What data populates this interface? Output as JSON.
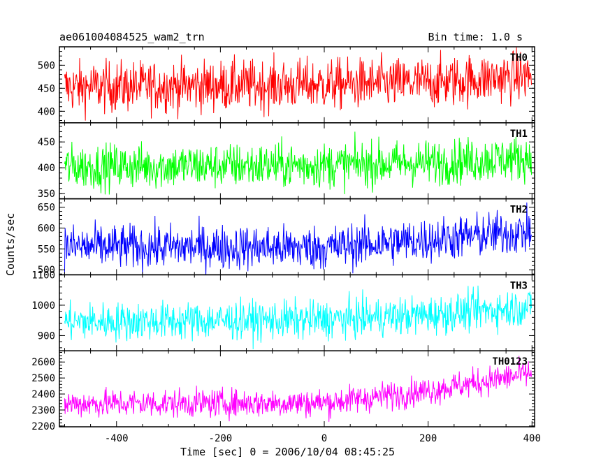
{
  "chart_data": {
    "type": "line",
    "title_left": "ae061004084525_wam2_trn",
    "title_right": "Bin time: 1.0 s",
    "xlabel": "Time [sec] 0 = 2006/10/04 08:45:25",
    "ylabel": "Counts/sec",
    "xlim": [
      -510,
      405
    ],
    "x_ticks": [
      -400,
      -200,
      0,
      200,
      400
    ],
    "data_x_range": [
      -500,
      399
    ],
    "grid": false,
    "panels": [
      {
        "name": "TH0",
        "color": "#ff0000",
        "ylim": [
          375,
          540
        ],
        "yticks": [
          400,
          450,
          500
        ],
        "trend": [
          [
            -500,
            452
          ],
          [
            0,
            458
          ],
          [
            200,
            462
          ],
          [
            399,
            478
          ]
        ],
        "noise": 28
      },
      {
        "name": "TH1",
        "color": "#00ff00",
        "ylim": [
          340,
          487
        ],
        "yticks": [
          350,
          400,
          450
        ],
        "trend": [
          [
            -500,
            402
          ],
          [
            0,
            405
          ],
          [
            200,
            410
          ],
          [
            399,
            420
          ]
        ],
        "noise": 22
      },
      {
        "name": "TH2",
        "color": "#0000ff",
        "ylim": [
          488,
          670
        ],
        "yticks": [
          500,
          550,
          600,
          650
        ],
        "trend": [
          [
            -500,
            555
          ],
          [
            0,
            553
          ],
          [
            200,
            572
          ],
          [
            399,
            592
          ]
        ],
        "noise": 27
      },
      {
        "name": "TH3",
        "color": "#00ffff",
        "ylim": [
          850,
          1100
        ],
        "yticks": [
          900,
          1000,
          1100
        ],
        "trend": [
          [
            -500,
            945
          ],
          [
            0,
            952
          ],
          [
            200,
            968
          ],
          [
            399,
            995
          ]
        ],
        "noise": 32
      },
      {
        "name": "TH0123",
        "color": "#ff00ff",
        "ylim": [
          2195,
          2670
        ],
        "yticks": [
          2200,
          2300,
          2400,
          2500,
          2600
        ],
        "trend": [
          [
            -500,
            2340
          ],
          [
            0,
            2345
          ],
          [
            200,
            2420
          ],
          [
            399,
            2530
          ]
        ],
        "noise": 45
      }
    ]
  }
}
